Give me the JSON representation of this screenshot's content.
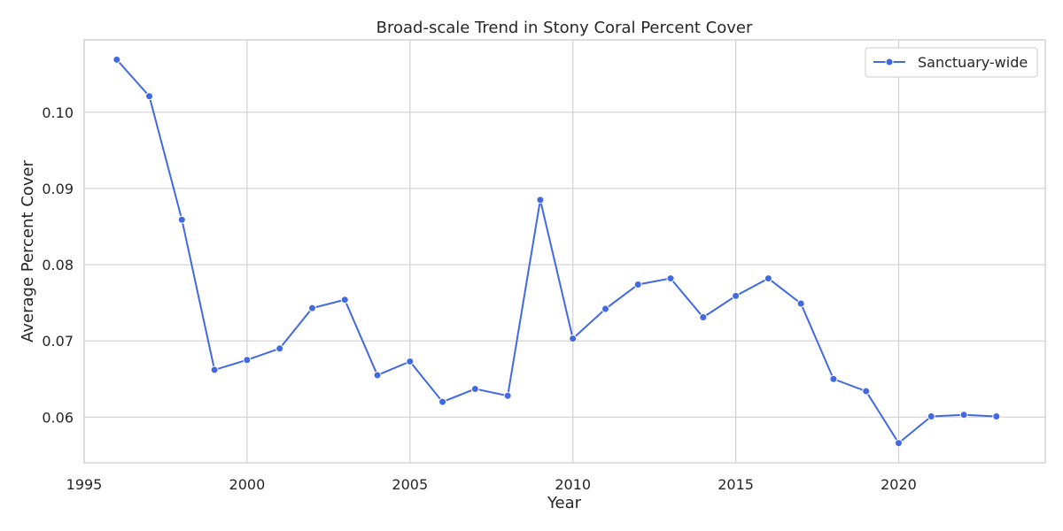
{
  "chart_data": {
    "type": "line",
    "title": "Broad-scale Trend in Stony Coral Percent Cover",
    "xlabel": "Year",
    "ylabel": "Average Percent Cover",
    "xlim": [
      1995,
      2024.5
    ],
    "ylim": [
      0.054,
      0.1095
    ],
    "xticks": [
      1995,
      2000,
      2005,
      2010,
      2015,
      2020
    ],
    "yticks": [
      0.06,
      0.07,
      0.08,
      0.09,
      0.1
    ],
    "xtick_labels": [
      "1995",
      "2000",
      "2005",
      "2010",
      "2015",
      "2020"
    ],
    "ytick_labels": [
      "0.06",
      "0.07",
      "0.08",
      "0.09",
      "0.10"
    ],
    "grid": true,
    "legend_position": "top-right",
    "color": "#4169e1",
    "series": [
      {
        "name": "Sanctuary-wide",
        "x": [
          1996,
          1997,
          1998,
          1999,
          2000,
          2001,
          2002,
          2003,
          2004,
          2005,
          2006,
          2007,
          2008,
          2009,
          2010,
          2011,
          2012,
          2013,
          2014,
          2015,
          2016,
          2017,
          2018,
          2019,
          2020,
          2021,
          2022,
          2023
        ],
        "values": [
          0.1069,
          0.1021,
          0.0859,
          0.0662,
          0.0675,
          0.069,
          0.0743,
          0.0754,
          0.0655,
          0.0673,
          0.062,
          0.0637,
          0.0628,
          0.0885,
          0.0703,
          0.0742,
          0.0774,
          0.0782,
          0.0731,
          0.0759,
          0.0782,
          0.0749,
          0.065,
          0.0634,
          0.0566,
          0.0601,
          0.0603,
          0.0601
        ]
      }
    ]
  }
}
